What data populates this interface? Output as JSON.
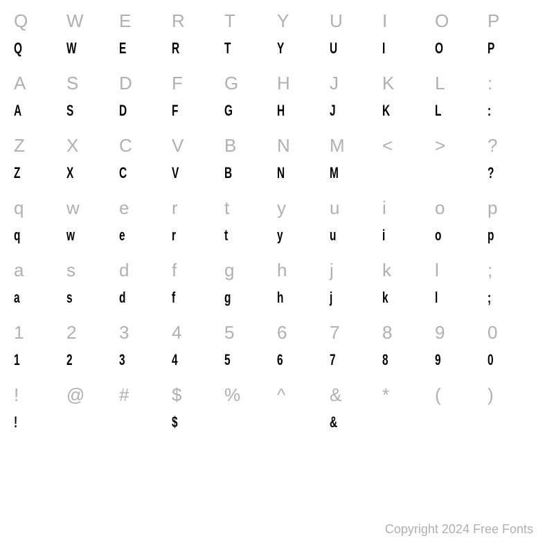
{
  "font_chart": {
    "type": "character-map",
    "background_color": "#ffffff",
    "reference_color": "#b0b0b0",
    "display_color": "#000000",
    "reference_fontsize": 26,
    "display_fontsize": 22,
    "columns": 10,
    "rows": [
      {
        "reference": [
          "Q",
          "W",
          "E",
          "R",
          "T",
          "Y",
          "U",
          "I",
          "O",
          "P"
        ],
        "display": [
          "Q",
          "W",
          "E",
          "R",
          "T",
          "Y",
          "U",
          "I",
          "O",
          "P"
        ]
      },
      {
        "reference": [
          "A",
          "S",
          "D",
          "F",
          "G",
          "H",
          "J",
          "K",
          "L",
          ":"
        ],
        "display": [
          "A",
          "S",
          "D",
          "F",
          "G",
          "H",
          "J",
          "K",
          "L",
          ":"
        ]
      },
      {
        "reference": [
          "Z",
          "X",
          "C",
          "V",
          "B",
          "N",
          "M",
          "<",
          ">",
          "?"
        ],
        "display": [
          "Z",
          "X",
          "C",
          "V",
          "B",
          "N",
          "M",
          "",
          "",
          "?"
        ]
      },
      {
        "reference": [
          "q",
          "w",
          "e",
          "r",
          "t",
          "y",
          "u",
          "i",
          "o",
          "p"
        ],
        "display": [
          "q",
          "w",
          "e",
          "r",
          "t",
          "y",
          "u",
          "i",
          "o",
          "p"
        ]
      },
      {
        "reference": [
          "a",
          "s",
          "d",
          "f",
          "g",
          "h",
          "j",
          "k",
          "l",
          ";"
        ],
        "display": [
          "a",
          "s",
          "d",
          "f",
          "g",
          "h",
          "j",
          "k",
          "l",
          ";"
        ]
      },
      {
        "reference": [
          "1",
          "2",
          "3",
          "4",
          "5",
          "6",
          "7",
          "8",
          "9",
          "0"
        ],
        "display": [
          "1",
          "2",
          "3",
          "4",
          "5",
          "6",
          "7",
          "8",
          "9",
          "0"
        ]
      },
      {
        "reference": [
          "!",
          "@",
          "#",
          "$",
          "%",
          "^",
          "&",
          "*",
          "(",
          ")"
        ],
        "display": [
          "!",
          "",
          "",
          "$",
          "",
          "",
          "&",
          "",
          "",
          ""
        ]
      }
    ]
  },
  "copyright_text": "Copyright 2024 Free Fonts"
}
